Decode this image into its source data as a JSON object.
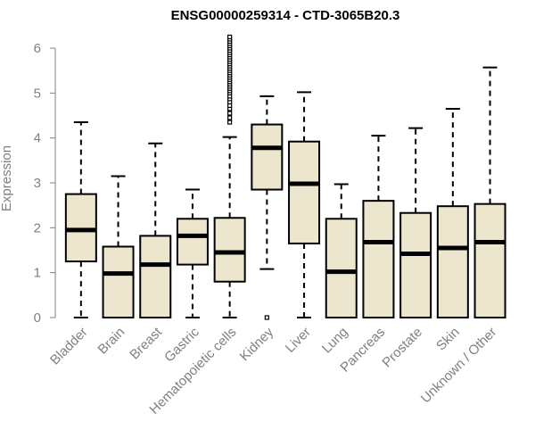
{
  "chart_data": {
    "type": "boxplot",
    "title": "ENSG00000259314 - CTD-3065B20.3",
    "xlabel": "",
    "ylabel": "Expression",
    "ylim": [
      0,
      6.3
    ],
    "yticks": [
      0,
      1,
      2,
      3,
      4,
      5,
      6
    ],
    "grid": false,
    "colors": {
      "box_fill": "#ede6cf",
      "box_stroke": "#000000",
      "axis": "#808080",
      "text": "#808080"
    },
    "categories": [
      "Bladder",
      "Brain",
      "Breast",
      "Gastric",
      "Hematopoietic cells",
      "Kidney",
      "Liver",
      "Lung",
      "Pancreas",
      "Prostate",
      "Skin",
      "Unknown / Other"
    ],
    "boxes": [
      {
        "category": "Bladder",
        "min": 0.0,
        "q1": 1.25,
        "median": 1.95,
        "q3": 2.75,
        "max": 4.35,
        "outliers": []
      },
      {
        "category": "Brain",
        "min": 0.0,
        "q1": 0.0,
        "median": 0.98,
        "q3": 1.58,
        "max": 3.15,
        "outliers": []
      },
      {
        "category": "Breast",
        "min": 0.0,
        "q1": 0.0,
        "median": 1.18,
        "q3": 1.82,
        "max": 3.88,
        "outliers": []
      },
      {
        "category": "Gastric",
        "min": 0.0,
        "q1": 1.18,
        "median": 1.82,
        "q3": 2.2,
        "max": 2.85,
        "outliers": []
      },
      {
        "category": "Hematopoietic cells",
        "min": 0.0,
        "q1": 0.8,
        "median": 1.45,
        "q3": 2.22,
        "max": 4.02,
        "outliers": [
          4.35,
          4.45,
          4.55,
          4.65,
          4.72,
          4.8,
          4.87,
          4.93,
          5.0,
          5.05,
          5.1,
          5.15,
          5.2,
          5.25,
          5.3,
          5.35,
          5.4,
          5.45,
          5.5,
          5.55,
          5.6,
          5.65,
          5.7,
          5.75,
          5.8,
          5.85,
          5.9,
          5.95,
          6.0,
          6.05,
          6.1,
          6.15,
          6.2,
          6.25
        ]
      },
      {
        "category": "Kidney",
        "min": 1.08,
        "q1": 2.85,
        "median": 3.78,
        "q3": 4.3,
        "max": 4.93,
        "outliers": [
          0.0
        ]
      },
      {
        "category": "Liver",
        "min": 0.0,
        "q1": 1.65,
        "median": 2.98,
        "q3": 3.92,
        "max": 5.02,
        "outliers": []
      },
      {
        "category": "Lung",
        "min": 0.0,
        "q1": 0.0,
        "median": 1.02,
        "q3": 2.2,
        "max": 2.97,
        "outliers": []
      },
      {
        "category": "Pancreas",
        "min": 0.0,
        "q1": 0.0,
        "median": 1.68,
        "q3": 2.6,
        "max": 4.05,
        "outliers": []
      },
      {
        "category": "Prostate",
        "min": 0.0,
        "q1": 0.0,
        "median": 1.42,
        "q3": 2.33,
        "max": 4.22,
        "outliers": []
      },
      {
        "category": "Skin",
        "min": 0.0,
        "q1": 0.0,
        "median": 1.55,
        "q3": 2.48,
        "max": 4.65,
        "outliers": []
      },
      {
        "category": "Unknown / Other",
        "min": 0.0,
        "q1": 0.0,
        "median": 1.68,
        "q3": 2.53,
        "max": 5.57,
        "outliers": []
      }
    ]
  }
}
